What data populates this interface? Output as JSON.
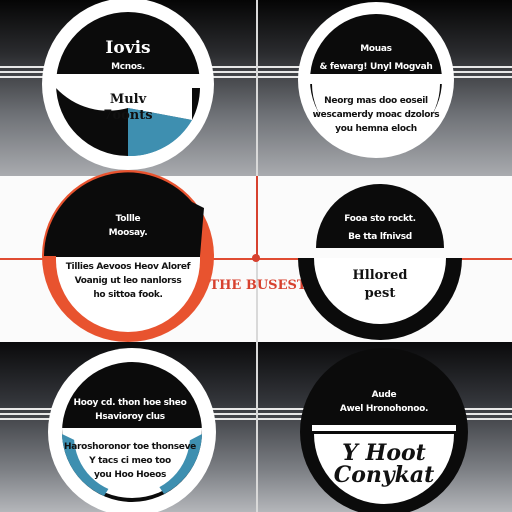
{
  "colors": {
    "accent_blue": "#3e8fb0",
    "accent_red": "#e8532f",
    "ink": "#0b0b0b"
  },
  "top_left": {
    "title": "Iovis",
    "subtitle": "Mcnos.",
    "body_1": "Mulv",
    "body_2": "7oonts"
  },
  "top_right": {
    "line_1": "Mouas",
    "line_2": "& fewarg! Unyl Mogvah",
    "body_1": "Neorg mas doo eoseil",
    "body_2": "wescamerdy moac dzolors",
    "body_3": "you hemna eloch"
  },
  "mid_left": {
    "line_1": "Tollle",
    "line_2": "Moosay.",
    "body_1": "Tillies Aevoos Heov Aloref",
    "body_2": "Voanig ut leo nanlorss",
    "body_3": "ho sittoa fook."
  },
  "center_label": "THE BUSEST",
  "mid_right": {
    "line_1": "Fooa sto rockt.",
    "line_2": "Be tta lfnivsd",
    "body_1": "Hllored",
    "body_2": "pest"
  },
  "bot_left": {
    "line_1": "Hooy cd. thon hoe sheo",
    "line_2": "Hsavioroy clus",
    "body_1": "Haroshoronor toe thonseve",
    "body_2": "Y tacs ci meo too",
    "body_3": "you Hoo Hoeos"
  },
  "bot_right": {
    "line_1": "Aude",
    "line_2": "Awel Hronohonoo.",
    "body_1": "Y Hoot",
    "body_2": "Conykat"
  }
}
